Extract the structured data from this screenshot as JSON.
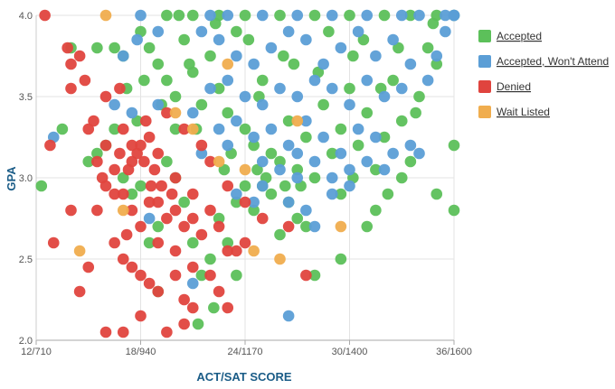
{
  "chart_data": {
    "type": "scatter",
    "title": "",
    "xlabel": "ACT/SAT SCORE",
    "ylabel": "GPA",
    "xlim": [
      12,
      36
    ],
    "ylim": [
      2.0,
      4.0
    ],
    "x_ticks": [
      {
        "value": 12,
        "label": "12/710"
      },
      {
        "value": 18,
        "label": "18/940"
      },
      {
        "value": 24,
        "label": "24/1170"
      },
      {
        "value": 30,
        "label": "30/1400"
      },
      {
        "value": 36,
        "label": "36/1600"
      }
    ],
    "y_ticks": [
      {
        "value": 2.0,
        "label": "2.0"
      },
      {
        "value": 2.5,
        "label": "2.5"
      },
      {
        "value": 3.0,
        "label": "3.0"
      },
      {
        "value": 3.5,
        "label": "3.5"
      },
      {
        "value": 4.0,
        "label": "4.0"
      }
    ],
    "grid": true,
    "legend_position": "right",
    "series": [
      {
        "name": "Accepted",
        "color": "#5cc05a",
        "points": [
          [
            19.5,
            4.0
          ],
          [
            20.2,
            4.0
          ],
          [
            21.0,
            4.0
          ],
          [
            22.5,
            4.0
          ],
          [
            24.0,
            4.0
          ],
          [
            26.0,
            4.0
          ],
          [
            28.0,
            4.0
          ],
          [
            30.0,
            4.0
          ],
          [
            32.0,
            4.0
          ],
          [
            33.5,
            4.0
          ],
          [
            35.0,
            4.0
          ],
          [
            36.0,
            4.0
          ],
          [
            14.0,
            3.8
          ],
          [
            15.5,
            3.8
          ],
          [
            16.5,
            3.8
          ],
          [
            17.0,
            3.75
          ],
          [
            17.2,
            3.55
          ],
          [
            18.0,
            3.9
          ],
          [
            18.5,
            3.8
          ],
          [
            19.0,
            3.7
          ],
          [
            19.5,
            3.6
          ],
          [
            20.0,
            3.5
          ],
          [
            20.5,
            3.85
          ],
          [
            21.0,
            3.65
          ],
          [
            21.5,
            3.45
          ],
          [
            22.0,
            3.75
          ],
          [
            22.5,
            3.55
          ],
          [
            23.0,
            3.4
          ],
          [
            23.5,
            3.9
          ],
          [
            24.0,
            3.3
          ],
          [
            24.5,
            3.2
          ],
          [
            25.0,
            3.6
          ],
          [
            25.5,
            3.15
          ],
          [
            26.0,
            3.1
          ],
          [
            26.5,
            3.35
          ],
          [
            27.0,
            3.05
          ],
          [
            27.5,
            3.25
          ],
          [
            28.0,
            3.0
          ],
          [
            28.5,
            3.45
          ],
          [
            29.0,
            3.15
          ],
          [
            29.5,
            3.3
          ],
          [
            30.0,
            3.55
          ],
          [
            30.5,
            3.2
          ],
          [
            31.0,
            3.4
          ],
          [
            31.5,
            3.05
          ],
          [
            32.0,
            3.25
          ],
          [
            32.5,
            3.6
          ],
          [
            33.0,
            3.35
          ],
          [
            33.5,
            3.1
          ],
          [
            34.0,
            3.5
          ],
          [
            34.5,
            3.8
          ],
          [
            35.0,
            3.7
          ],
          [
            36.0,
            3.2
          ],
          [
            36.0,
            2.8
          ],
          [
            35.0,
            2.9
          ],
          [
            31.5,
            2.8
          ],
          [
            31.0,
            2.7
          ],
          [
            29.5,
            2.5
          ],
          [
            29.5,
            2.9
          ],
          [
            28.0,
            2.4
          ],
          [
            27.5,
            2.7
          ],
          [
            27.0,
            2.75
          ],
          [
            26.5,
            2.85
          ],
          [
            26.0,
            2.65
          ],
          [
            25.5,
            2.9
          ],
          [
            25.0,
            2.95
          ],
          [
            24.5,
            2.8
          ],
          [
            24.0,
            2.95
          ],
          [
            23.5,
            2.85
          ],
          [
            23.0,
            2.6
          ],
          [
            22.5,
            2.75
          ],
          [
            22.0,
            2.5
          ],
          [
            21.5,
            2.4
          ],
          [
            21.0,
            2.6
          ],
          [
            20.5,
            2.85
          ],
          [
            20.0,
            3.0
          ],
          [
            19.5,
            3.1
          ],
          [
            19.0,
            2.7
          ],
          [
            18.5,
            2.6
          ],
          [
            18.0,
            2.95
          ],
          [
            17.5,
            2.9
          ],
          [
            17.0,
            3.0
          ],
          [
            16.5,
            3.3
          ],
          [
            16.0,
            3.2
          ],
          [
            15.5,
            3.15
          ],
          [
            15.0,
            3.1
          ],
          [
            13.5,
            3.3
          ],
          [
            12.3,
            2.95
          ],
          [
            19.0,
            2.3
          ],
          [
            21.3,
            2.1
          ],
          [
            23.5,
            2.4
          ],
          [
            22.2,
            2.2
          ],
          [
            20.0,
            3.3
          ],
          [
            22.8,
            3.05
          ],
          [
            24.8,
            3.5
          ],
          [
            26.8,
            3.7
          ],
          [
            28.8,
            3.9
          ],
          [
            30.8,
            3.85
          ],
          [
            32.8,
            3.8
          ],
          [
            34.8,
            3.95
          ],
          [
            33.0,
            3.0
          ],
          [
            32.2,
            2.9
          ],
          [
            30.2,
            3.0
          ],
          [
            27.2,
            2.95
          ],
          [
            25.2,
            3.0
          ],
          [
            23.2,
            3.15
          ],
          [
            21.2,
            3.3
          ],
          [
            19.2,
            3.45
          ],
          [
            18.2,
            3.6
          ],
          [
            17.8,
            3.35
          ],
          [
            20.8,
            3.7
          ],
          [
            22.3,
            3.95
          ],
          [
            24.2,
            3.85
          ],
          [
            26.2,
            3.75
          ],
          [
            28.2,
            3.65
          ],
          [
            30.2,
            3.75
          ],
          [
            31.8,
            3.55
          ],
          [
            33.8,
            3.4
          ],
          [
            24.7,
            3.05
          ],
          [
            26.3,
            2.95
          ]
        ]
      },
      {
        "name": "Accepted, Won't Attend",
        "color": "#5b9ed6",
        "points": [
          [
            18.0,
            4.0
          ],
          [
            22.0,
            4.0
          ],
          [
            23.0,
            4.0
          ],
          [
            25.0,
            4.0
          ],
          [
            27.0,
            4.0
          ],
          [
            29.0,
            4.0
          ],
          [
            31.0,
            4.0
          ],
          [
            33.0,
            4.0
          ],
          [
            34.0,
            4.0
          ],
          [
            35.5,
            4.0
          ],
          [
            36.0,
            4.0
          ],
          [
            21.5,
            3.9
          ],
          [
            22.5,
            3.85
          ],
          [
            23.5,
            3.75
          ],
          [
            24.5,
            3.7
          ],
          [
            25.5,
            3.8
          ],
          [
            26.5,
            3.9
          ],
          [
            27.5,
            3.85
          ],
          [
            28.5,
            3.7
          ],
          [
            29.5,
            3.8
          ],
          [
            30.5,
            3.9
          ],
          [
            31.5,
            3.75
          ],
          [
            32.5,
            3.85
          ],
          [
            33.5,
            3.7
          ],
          [
            34.5,
            3.6
          ],
          [
            35.5,
            3.9
          ],
          [
            22.0,
            3.55
          ],
          [
            23.0,
            3.6
          ],
          [
            24.0,
            3.5
          ],
          [
            25.0,
            3.45
          ],
          [
            26.0,
            3.55
          ],
          [
            27.0,
            3.5
          ],
          [
            28.0,
            3.6
          ],
          [
            29.0,
            3.55
          ],
          [
            30.0,
            3.45
          ],
          [
            31.0,
            3.6
          ],
          [
            32.0,
            3.5
          ],
          [
            33.0,
            3.55
          ],
          [
            21.0,
            3.4
          ],
          [
            22.5,
            3.3
          ],
          [
            23.5,
            3.35
          ],
          [
            24.5,
            3.25
          ],
          [
            25.5,
            3.3
          ],
          [
            26.5,
            3.2
          ],
          [
            27.5,
            3.35
          ],
          [
            28.5,
            3.25
          ],
          [
            29.5,
            3.15
          ],
          [
            30.5,
            3.3
          ],
          [
            31.5,
            3.25
          ],
          [
            32.5,
            3.15
          ],
          [
            33.5,
            3.2
          ],
          [
            26.0,
            3.05
          ],
          [
            27.0,
            3.0
          ],
          [
            28.0,
            3.1
          ],
          [
            29.0,
            3.0
          ],
          [
            30.0,
            3.05
          ],
          [
            31.0,
            3.1
          ],
          [
            25.0,
            2.95
          ],
          [
            26.5,
            2.85
          ],
          [
            27.5,
            2.8
          ],
          [
            28.0,
            2.7
          ],
          [
            24.5,
            2.85
          ],
          [
            23.5,
            2.9
          ],
          [
            19.0,
            3.45
          ],
          [
            17.5,
            3.4
          ],
          [
            16.5,
            3.45
          ],
          [
            17.0,
            3.75
          ],
          [
            19.0,
            3.9
          ],
          [
            17.8,
            3.85
          ],
          [
            13.0,
            3.25
          ],
          [
            18.5,
            2.75
          ],
          [
            21.0,
            2.35
          ],
          [
            26.5,
            2.15
          ],
          [
            36.0,
            4.0
          ],
          [
            35.0,
            3.75
          ],
          [
            34.0,
            3.15
          ],
          [
            32.0,
            3.05
          ],
          [
            30.0,
            2.95
          ],
          [
            29.0,
            2.9
          ],
          [
            27.0,
            3.15
          ],
          [
            25.0,
            3.1
          ],
          [
            23.0,
            3.2
          ],
          [
            21.5,
            3.15
          ]
        ]
      },
      {
        "name": "Denied",
        "color": "#e0443e",
        "points": [
          [
            12.5,
            4.0
          ],
          [
            14.0,
            3.7
          ],
          [
            14.5,
            3.75
          ],
          [
            15.0,
            3.3
          ],
          [
            14.0,
            3.55
          ],
          [
            15.5,
            3.1
          ],
          [
            16.0,
            3.5
          ],
          [
            16.0,
            3.2
          ],
          [
            15.8,
            3.0
          ],
          [
            16.5,
            3.05
          ],
          [
            17.0,
            3.3
          ],
          [
            17.5,
            3.2
          ],
          [
            17.5,
            3.1
          ],
          [
            17.8,
            3.15
          ],
          [
            18.0,
            3.2
          ],
          [
            18.2,
            3.1
          ],
          [
            18.5,
            3.25
          ],
          [
            18.8,
            3.05
          ],
          [
            19.0,
            3.15
          ],
          [
            19.2,
            2.95
          ],
          [
            17.0,
            2.9
          ],
          [
            17.5,
            2.8
          ],
          [
            18.0,
            2.7
          ],
          [
            18.5,
            2.85
          ],
          [
            19.0,
            2.6
          ],
          [
            19.5,
            2.75
          ],
          [
            20.0,
            2.8
          ],
          [
            20.5,
            2.7
          ],
          [
            21.0,
            2.75
          ],
          [
            21.5,
            2.65
          ],
          [
            22.0,
            2.8
          ],
          [
            22.5,
            2.7
          ],
          [
            23.0,
            2.55
          ],
          [
            19.0,
            2.85
          ],
          [
            20.0,
            2.55
          ],
          [
            21.0,
            2.45
          ],
          [
            16.5,
            2.6
          ],
          [
            17.0,
            2.5
          ],
          [
            17.5,
            2.45
          ],
          [
            18.0,
            2.4
          ],
          [
            18.5,
            2.35
          ],
          [
            19.0,
            2.3
          ],
          [
            20.0,
            2.4
          ],
          [
            20.5,
            2.25
          ],
          [
            21.0,
            2.2
          ],
          [
            22.0,
            2.4
          ],
          [
            22.5,
            2.3
          ],
          [
            23.0,
            2.2
          ],
          [
            18.0,
            2.15
          ],
          [
            19.5,
            2.05
          ],
          [
            20.5,
            2.1
          ],
          [
            17.0,
            2.05
          ],
          [
            16.0,
            2.05
          ],
          [
            14.5,
            2.3
          ],
          [
            15.0,
            2.45
          ],
          [
            13.0,
            2.6
          ],
          [
            14.0,
            2.8
          ],
          [
            15.5,
            2.8
          ],
          [
            16.0,
            2.95
          ],
          [
            12.8,
            3.2
          ],
          [
            16.5,
            2.9
          ],
          [
            17.2,
            2.65
          ],
          [
            23.5,
            2.55
          ],
          [
            24.0,
            2.6
          ],
          [
            25.0,
            2.75
          ],
          [
            26.5,
            2.7
          ],
          [
            27.5,
            2.4
          ],
          [
            18.3,
            3.35
          ],
          [
            19.5,
            3.4
          ],
          [
            20.5,
            3.3
          ],
          [
            21.5,
            3.2
          ],
          [
            22.0,
            3.1
          ],
          [
            23.0,
            2.95
          ],
          [
            24.0,
            2.85
          ],
          [
            20.0,
            3.0
          ],
          [
            19.8,
            2.9
          ],
          [
            21.0,
            2.9
          ],
          [
            18.6,
            2.95
          ],
          [
            17.3,
            3.05
          ],
          [
            16.8,
            3.15
          ],
          [
            15.3,
            3.35
          ],
          [
            14.8,
            3.6
          ],
          [
            13.8,
            3.8
          ],
          [
            16.8,
            3.55
          ]
        ]
      },
      {
        "name": "Wait Listed",
        "color": "#f0ad4e",
        "points": [
          [
            16.0,
            4.0
          ],
          [
            17.0,
            2.8
          ],
          [
            14.5,
            2.55
          ],
          [
            24.5,
            2.55
          ],
          [
            26.0,
            2.5
          ],
          [
            29.5,
            2.7
          ],
          [
            24.0,
            3.05
          ],
          [
            22.5,
            3.1
          ],
          [
            23.0,
            3.7
          ],
          [
            21.0,
            3.3
          ],
          [
            27.0,
            3.35
          ],
          [
            20.0,
            3.4
          ]
        ]
      }
    ]
  }
}
